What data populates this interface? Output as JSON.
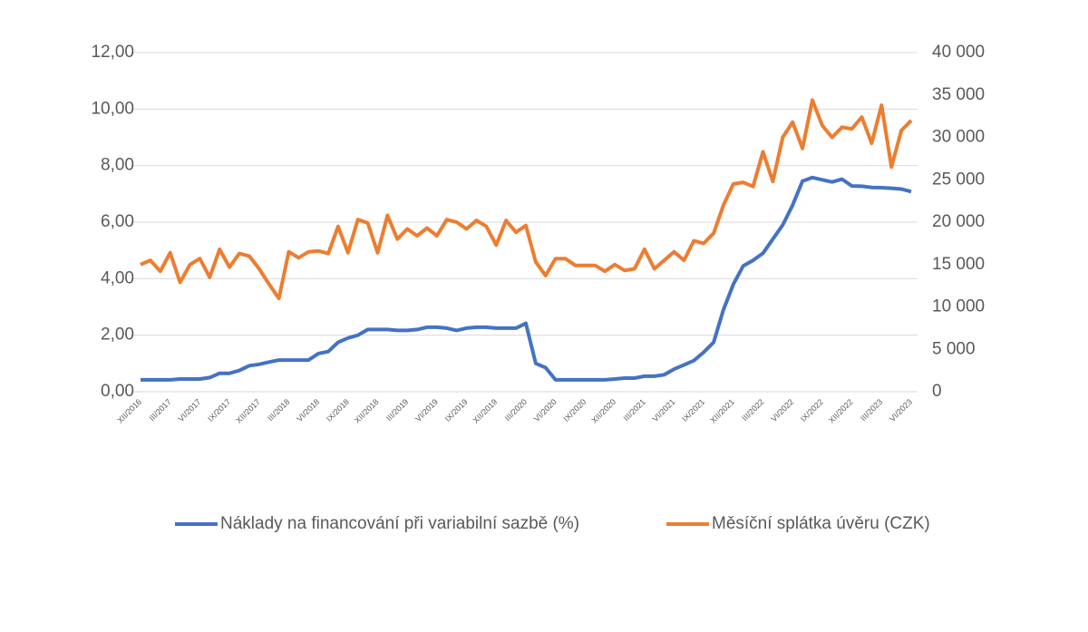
{
  "chart_data": {
    "type": "line",
    "categories": [
      "XII/2016",
      null,
      null,
      "III/2017",
      null,
      null,
      "VI/2017",
      null,
      null,
      "IX/2017",
      null,
      null,
      "XII/2017",
      null,
      null,
      "III/2018",
      null,
      null,
      "VI/2018",
      null,
      null,
      "IX/2018",
      null,
      null,
      "XII/2018",
      null,
      null,
      "III/2019",
      null,
      null,
      "VI/2019",
      null,
      null,
      "IX/2019",
      null,
      null,
      "XII/2019",
      null,
      null,
      "III/2020",
      null,
      null,
      "VI/2020",
      null,
      null,
      "IX/2020",
      null,
      null,
      "XII/2020",
      null,
      null,
      "III/2021",
      null,
      null,
      "VI/2021",
      null,
      null,
      "IX/2021",
      null,
      null,
      "XII/2021",
      null,
      null,
      "III/2022",
      null,
      null,
      "VI/2022",
      null,
      null,
      "IX/2022",
      null,
      null,
      "XII/2022",
      null,
      null,
      "III/2023",
      null,
      null,
      "VI/2023"
    ],
    "series": [
      {
        "name": "Náklady na financování při variabilní sazbě (%)",
        "color": "#4472c4",
        "axis": "y",
        "values": [
          0.42,
          0.42,
          0.42,
          0.42,
          0.45,
          0.45,
          0.45,
          0.5,
          0.65,
          0.65,
          0.75,
          0.92,
          0.97,
          1.05,
          1.12,
          1.12,
          1.12,
          1.12,
          1.35,
          1.42,
          1.75,
          1.9,
          2.0,
          2.2,
          2.2,
          2.2,
          2.17,
          2.17,
          2.2,
          2.28,
          2.28,
          2.25,
          2.17,
          2.25,
          2.28,
          2.28,
          2.25,
          2.25,
          2.25,
          2.42,
          1.0,
          0.85,
          0.42,
          0.42,
          0.42,
          0.42,
          0.42,
          0.42,
          0.45,
          0.48,
          0.48,
          0.55,
          0.55,
          0.6,
          0.8,
          0.95,
          1.1,
          1.4,
          1.75,
          2.9,
          3.8,
          4.45,
          4.65,
          4.9,
          5.4,
          5.9,
          6.6,
          7.45,
          7.58,
          7.5,
          7.42,
          7.52,
          7.28,
          7.27,
          7.23,
          7.22,
          7.2,
          7.17,
          7.08
        ]
      },
      {
        "name": "Měsíční splátka úvěru (CZK)",
        "color": "#ed7d31",
        "axis": "y2",
        "values": [
          15000,
          15500,
          14200,
          16400,
          12900,
          15000,
          15700,
          13500,
          16800,
          14700,
          16300,
          16000,
          14500,
          12700,
          11000,
          16500,
          15800,
          16500,
          16600,
          16300,
          19500,
          16400,
          20300,
          19900,
          16400,
          20800,
          18000,
          19200,
          18400,
          19300,
          18400,
          20300,
          20000,
          19200,
          20200,
          19500,
          17300,
          20200,
          18800,
          19600,
          15300,
          13700,
          15700,
          15700,
          14900,
          14900,
          14900,
          14200,
          15000,
          14300,
          14500,
          16800,
          14500,
          15500,
          16500,
          15500,
          17800,
          17500,
          18700,
          22000,
          24500,
          24700,
          24200,
          28300,
          24800,
          30000,
          31800,
          28700,
          34400,
          31400,
          30000,
          31200,
          31000,
          32400,
          29300,
          33800,
          26500,
          30800,
          32000
        ]
      }
    ],
    "ylim": [
      0,
      12
    ],
    "yticks": [
      {
        "value": 0,
        "label": "0,00"
      },
      {
        "value": 2,
        "label": "2,00"
      },
      {
        "value": 4,
        "label": "4,00"
      },
      {
        "value": 6,
        "label": "6,00"
      },
      {
        "value": 8,
        "label": "8,00"
      },
      {
        "value": 10,
        "label": "10,00"
      },
      {
        "value": 12,
        "label": "12,00"
      }
    ],
    "y2lim": [
      0,
      40000
    ],
    "y2ticks": [
      0,
      {
        "value": 5000,
        "label": "5 000"
      },
      {
        "value": 10000,
        "label": "10 000"
      },
      {
        "value": 15000,
        "label": "15 000"
      },
      {
        "value": 20000,
        "label": "20 000"
      },
      {
        "value": 25000,
        "label": "25 000"
      },
      {
        "value": 30000,
        "label": "30 000"
      },
      {
        "value": 35000,
        "label": "35 000"
      },
      {
        "value": 40000,
        "label": "40 000"
      }
    ],
    "grid": true,
    "legend": "bottom"
  }
}
